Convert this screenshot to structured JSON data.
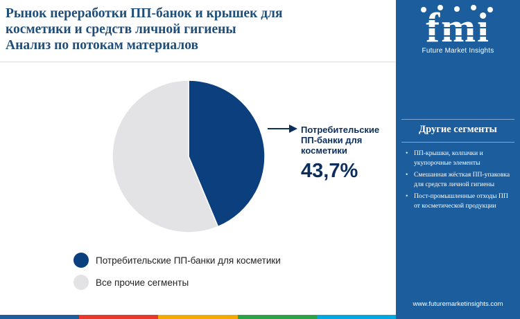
{
  "header": {
    "title_lines": [
      "Рынок переработки ПП-банок и крышек для",
      "косметики и средств личной гигиены",
      "Анализ по потокам материалов"
    ]
  },
  "chart_data": {
    "type": "pie",
    "slices": [
      {
        "label": "Потребительские ПП-банки для косметики",
        "value": 43.7,
        "color": "#0c3f7d"
      },
      {
        "label": "Все прочие сегменты",
        "value": 56.3,
        "color": "#e3e3e6"
      }
    ],
    "callout": {
      "label": "Потребительские ПП-банки для косметики",
      "label_lines": [
        "Потребительские",
        "ПП-банки для",
        "косметики"
      ],
      "value_text": "43,7%"
    },
    "legend": [
      {
        "label": "Потребительские ПП-банки для косметики",
        "color": "#0c3f7d"
      },
      {
        "label": "Все прочие сегменты",
        "color": "#e3e3e6"
      }
    ]
  },
  "side_panel": {
    "brand": "fmi",
    "brand_tagline": "Future Market Insights",
    "heading": "Другие сегменты",
    "items": [
      "ПП-крышки, колпачки и укупорочные элементы",
      "Смешанная жёсткая ПП-упаковка для средств личной гигиены",
      "Пост-промышленные отходы ПП от косметической продукции"
    ],
    "url": "www.futuremarketinsights.com",
    "background_color": "#1c5d9e"
  },
  "colors": {
    "title": "#1f4e79",
    "accent_dark": "#0c3f7d",
    "bottom_bar": [
      "#1c5d9e",
      "#e8372b",
      "#f2a900",
      "#2aa248",
      "#00a8e1"
    ]
  }
}
